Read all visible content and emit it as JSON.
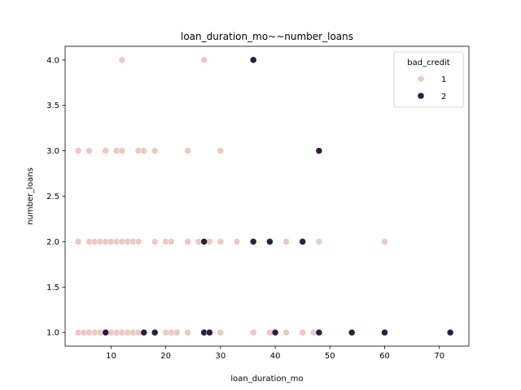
{
  "chart_data": {
    "type": "scatter",
    "title": "loan_duration_mo~~number_loans",
    "xlabel": "loan_duration_mo",
    "ylabel": "number_loans",
    "xlim": [
      1.6,
      75.4
    ],
    "ylim": [
      0.85,
      4.15
    ],
    "xticks": [
      10,
      20,
      30,
      40,
      50,
      60,
      70
    ],
    "yticks": [
      1.0,
      1.5,
      2.0,
      2.5,
      3.0,
      3.5,
      4.0
    ],
    "grid": false,
    "legend": {
      "title": "bad_credit",
      "placement": "top-right"
    },
    "series": [
      {
        "name": "1",
        "color": "#ecc9c4",
        "points": [
          [
            4,
            1
          ],
          [
            5,
            1
          ],
          [
            6,
            1
          ],
          [
            7,
            1
          ],
          [
            8,
            1
          ],
          [
            9,
            1
          ],
          [
            10,
            1
          ],
          [
            11,
            1
          ],
          [
            12,
            1
          ],
          [
            13,
            1
          ],
          [
            14,
            1
          ],
          [
            15,
            1
          ],
          [
            16,
            1
          ],
          [
            18,
            1
          ],
          [
            20,
            1
          ],
          [
            21,
            1
          ],
          [
            22,
            1
          ],
          [
            24,
            1
          ],
          [
            27,
            1
          ],
          [
            30,
            1
          ],
          [
            36,
            1
          ],
          [
            39,
            1
          ],
          [
            42,
            1
          ],
          [
            45,
            1
          ],
          [
            47,
            1
          ],
          [
            48,
            1
          ],
          [
            60,
            1
          ],
          [
            4,
            2
          ],
          [
            6,
            2
          ],
          [
            7,
            2
          ],
          [
            8,
            2
          ],
          [
            9,
            2
          ],
          [
            10,
            2
          ],
          [
            11,
            2
          ],
          [
            12,
            2
          ],
          [
            13,
            2
          ],
          [
            14,
            2
          ],
          [
            15,
            2
          ],
          [
            18,
            2
          ],
          [
            20,
            2
          ],
          [
            21,
            2
          ],
          [
            24,
            2
          ],
          [
            26,
            2
          ],
          [
            28,
            2
          ],
          [
            30,
            2
          ],
          [
            33,
            2
          ],
          [
            36,
            2
          ],
          [
            42,
            2
          ],
          [
            48,
            2
          ],
          [
            60,
            2
          ],
          [
            4,
            3
          ],
          [
            6,
            3
          ],
          [
            9,
            3
          ],
          [
            11,
            3
          ],
          [
            12,
            3
          ],
          [
            15,
            3
          ],
          [
            16,
            3
          ],
          [
            18,
            3
          ],
          [
            24,
            3
          ],
          [
            30,
            3
          ],
          [
            12,
            4
          ],
          [
            27,
            4
          ]
        ]
      },
      {
        "name": "2",
        "color": "#2d1e3e",
        "points": [
          [
            9,
            1
          ],
          [
            16,
            1
          ],
          [
            18,
            1
          ],
          [
            27,
            1
          ],
          [
            28,
            1
          ],
          [
            40,
            1
          ],
          [
            48,
            1
          ],
          [
            54,
            1
          ],
          [
            60,
            1
          ],
          [
            72,
            1
          ],
          [
            27,
            2
          ],
          [
            36,
            2
          ],
          [
            39,
            2
          ],
          [
            45,
            2
          ],
          [
            48,
            3
          ],
          [
            36,
            4
          ]
        ]
      }
    ]
  }
}
